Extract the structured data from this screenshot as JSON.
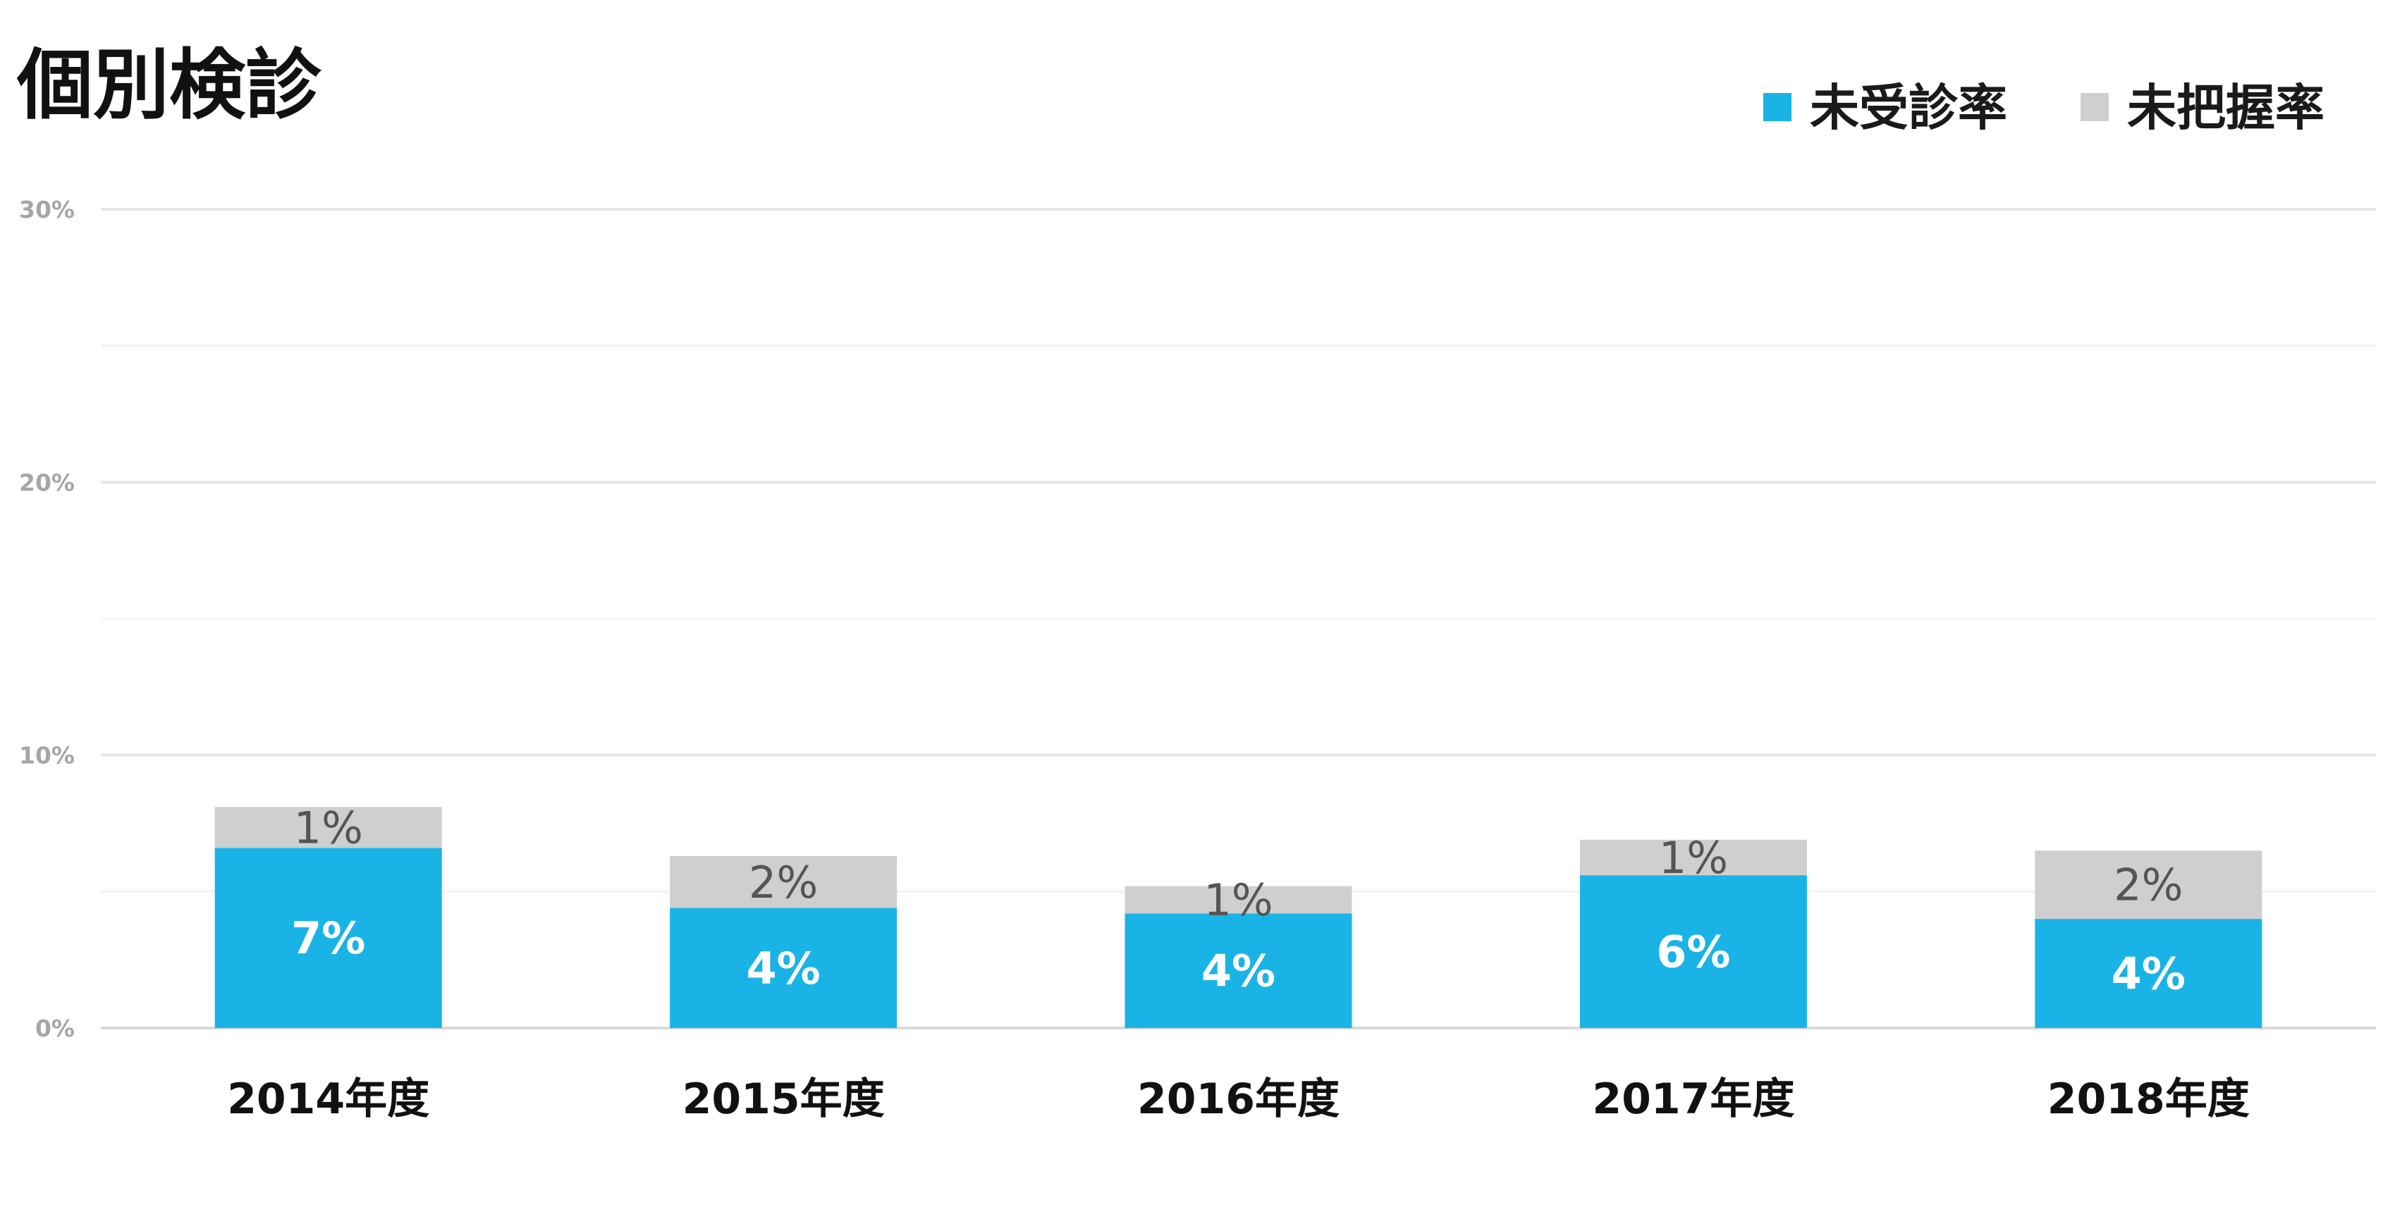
{
  "chart_data": {
    "type": "stacked-bar",
    "title": "個別検診",
    "categories": [
      "2014年度",
      "2015年度",
      "2016年度",
      "2017年度",
      "2018年度"
    ],
    "series": [
      {
        "name": "未受診率",
        "color": "#1ab3e6",
        "values": [
          6.6,
          4.4,
          4.2,
          5.6,
          4.0
        ],
        "labels": [
          "7%",
          "4%",
          "4%",
          "6%",
          "4%"
        ]
      },
      {
        "name": "未把握率",
        "color": "#d0cfd0",
        "values": [
          1.5,
          1.9,
          1.0,
          1.3,
          2.5
        ],
        "labels": [
          "1%",
          "2%",
          "1%",
          "1%",
          "2%"
        ]
      }
    ],
    "ylim": [
      0,
      30
    ],
    "yticks": [
      0,
      10,
      20,
      30
    ],
    "ytick_labels": [
      "0%",
      "10%",
      "20%",
      "30%"
    ],
    "grid": true,
    "legend": "top-right"
  }
}
